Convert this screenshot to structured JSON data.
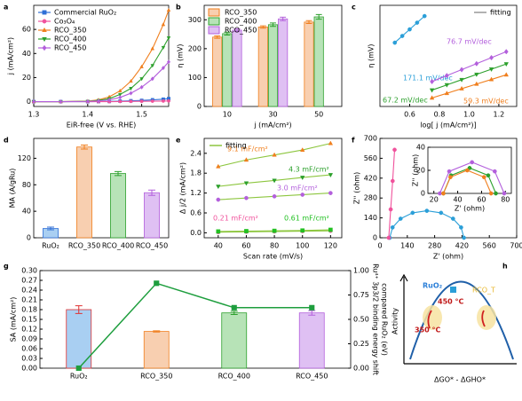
{
  "chart_data": [
    {
      "panel": "a",
      "type": "line",
      "xlabel": "EiR-free (V vs. RHE)",
      "ylabel": "j (mA/cm²)",
      "xlim": [
        1.3,
        1.55
      ],
      "xticks": [
        1.3,
        1.4,
        1.5
      ],
      "ylim": [
        -4,
        80
      ],
      "yticks": [
        0,
        20,
        40,
        60
      ],
      "legend": "upper left",
      "x": [
        1.3,
        1.35,
        1.4,
        1.42,
        1.44,
        1.46,
        1.48,
        1.5,
        1.52,
        1.54,
        1.55
      ],
      "series": [
        {
          "name": "Commercial RuO₂",
          "color": "#2f6fd6",
          "marker": "square",
          "values": [
            0,
            0,
            0,
            0.1,
            0.2,
            0.4,
            0.7,
            1,
            1.5,
            2,
            2.5
          ]
        },
        {
          "name": "Co₃O₄",
          "color": "#f0529c",
          "marker": "circle",
          "values": [
            0,
            0,
            0,
            0,
            0,
            0.1,
            0.2,
            0.3,
            0.4,
            0.5,
            0.6
          ]
        },
        {
          "name": "RCO_350",
          "color": "#f07f1e",
          "marker": "triangle",
          "values": [
            0,
            0,
            0.5,
            1.5,
            4,
            9,
            17,
            29,
            44,
            64,
            76
          ]
        },
        {
          "name": "RCO_400",
          "color": "#2ca02c",
          "marker": "triangle-down",
          "values": [
            0,
            0,
            0.3,
            1,
            2.5,
            6,
            11,
            19,
            30,
            45,
            53
          ]
        },
        {
          "name": "RCO_450",
          "color": "#b35fdc",
          "marker": "diamond",
          "values": [
            0,
            0,
            0.2,
            0.6,
            1.5,
            3.5,
            7,
            12,
            19,
            28,
            33
          ]
        }
      ]
    },
    {
      "panel": "b",
      "type": "bar",
      "xlabel": "j (mA/cm²)",
      "ylabel": "η (mV)",
      "categories": [
        10,
        30,
        50
      ],
      "ylim": [
        0,
        350
      ],
      "yticks": [
        0,
        100,
        200,
        300
      ],
      "legend": "upper left",
      "series": [
        {
          "name": "RCO_350",
          "color": "#f8cfb0",
          "edge": "#f07f1e",
          "values": [
            240,
            275,
            292
          ],
          "errors": [
            4,
            4,
            5
          ]
        },
        {
          "name": "RCO_400",
          "color": "#b7e3b7",
          "edge": "#2ca02c",
          "values": [
            252,
            283,
            310
          ],
          "errors": [
            5,
            6,
            8
          ]
        },
        {
          "name": "RCO_450",
          "color": "#dfc0f3",
          "edge": "#b35fdc",
          "values": [
            264,
            303,
            null
          ],
          "errors": [
            5,
            6,
            null
          ]
        }
      ]
    },
    {
      "panel": "c",
      "type": "scatter",
      "xlabel": "log[ j (mA/cm²)]",
      "ylabel": "η (mV)",
      "xlim": [
        0.4,
        1.32
      ],
      "xticks": [
        0.6,
        0.8,
        {
          "value": 1,
          "label": "1.0"
        },
        1.2
      ],
      "ylim": [
        220,
        350
      ],
      "fit_label": "fitting",
      "fit_color": "#999999",
      "fit_legend": "upper right",
      "series": [
        {
          "color": "#2b9fd8",
          "marker": "circle",
          "x": [
            0.5,
            0.55,
            0.6,
            0.65,
            0.7
          ],
          "values": [
            302,
            310.6,
            319.1,
            327.7,
            336.2
          ],
          "annotation": "171.1 mV/dec"
        },
        {
          "color": "#b35fdc",
          "marker": "diamond",
          "x": [
            0.75,
            0.85,
            0.95,
            1.05,
            1.15,
            1.25
          ],
          "values": [
            252,
            259.7,
            267.3,
            275,
            282.7,
            290.4
          ],
          "annotation": "76.7 mV/dec"
        },
        {
          "color": "#2ca02c",
          "marker": "triangle-down",
          "x": [
            0.75,
            0.85,
            0.95,
            1.05,
            1.15,
            1.25
          ],
          "values": [
            241,
            247.7,
            254.4,
            261.2,
            267.9,
            274.6
          ],
          "annotation": "67.2 mV/dec"
        },
        {
          "color": "#f07f1e",
          "marker": "triangle",
          "x": [
            0.75,
            0.85,
            0.95,
            1.05,
            1.15,
            1.25
          ],
          "values": [
            231,
            236.9,
            242.9,
            248.8,
            254.7,
            260.7
          ],
          "annotation": "59.3 mV/dec"
        }
      ]
    },
    {
      "panel": "d",
      "type": "bar",
      "ylabel": "MA (A/gRu)",
      "categories": [
        "RuO₂",
        "RCO_350",
        "RCO_400",
        "RCO_450"
      ],
      "ylim": [
        0,
        150
      ],
      "yticks": [
        0,
        40,
        80,
        120
      ],
      "series": [
        {
          "colors": [
            "#a9cff2",
            "#f8cfb0",
            "#b7e3b7",
            "#dfc0f3"
          ],
          "edges": [
            "#2f6fd6",
            "#f07f1e",
            "#2ca02c",
            "#b35fdc"
          ],
          "values": [
            14,
            137,
            97,
            68
          ],
          "errors": [
            2,
            3,
            3,
            4
          ]
        }
      ]
    },
    {
      "panel": "e",
      "type": "scatter",
      "xlabel": "Scan rate (mV/s)",
      "ylabel": "Δ j/2 (mA/cm²)",
      "xlim": [
        30,
        128
      ],
      "xticks": [
        40,
        60,
        80,
        100,
        120
      ],
      "ylim": [
        -0.15,
        2.85
      ],
      "yticks": [
        {
          "value": 0,
          "label": "0.0"
        },
        0.6,
        1.2,
        1.8,
        2.4
      ],
      "fit_label": "fitting",
      "fit_color": "#8dc63f",
      "fit_legend": "upper left",
      "series": [
        {
          "color": "#f07f1e",
          "line_color": "#8dc63f",
          "marker": "triangle",
          "x": [
            40,
            60,
            80,
            100,
            120
          ],
          "values": [
            2.0,
            2.2,
            2.35,
            2.5,
            2.7
          ],
          "annotation": "9.1 mF/cm²"
        },
        {
          "color": "#2ca02c",
          "line_color": "#8dc63f",
          "marker": "triangle-down",
          "x": [
            40,
            60,
            80,
            100,
            120
          ],
          "values": [
            1.4,
            1.5,
            1.58,
            1.67,
            1.75
          ],
          "annotation": "4.3 mF/cm²"
        },
        {
          "color": "#b35fdc",
          "line_color": "#8dc63f",
          "marker": "circle",
          "x": [
            40,
            60,
            80,
            100,
            120
          ],
          "values": [
            1.0,
            1.05,
            1.1,
            1.15,
            1.2
          ],
          "annotation": "3.0 mF/cm²"
        },
        {
          "color": "#f0529c",
          "line_color": "#8dc63f",
          "marker": "circle",
          "x": [
            40,
            60,
            80,
            100,
            120
          ],
          "values": [
            0.02,
            0.03,
            0.04,
            0.05,
            0.06
          ],
          "annotation": "0.21 mF/cm²"
        },
        {
          "color": "#22c022",
          "line_color": "#8dc63f",
          "marker": "square",
          "x": [
            40,
            60,
            80,
            100,
            120
          ],
          "values": [
            0.04,
            0.05,
            0.06,
            0.07,
            0.09
          ],
          "annotation": "0.61 mF/cm²"
        }
      ]
    },
    {
      "panel": "f",
      "type": "scatter",
      "xlabel": "Z' (ohm)",
      "ylabel": "Z'' (ohm)",
      "xlim": [
        0,
        700
      ],
      "xticks": [
        0,
        140,
        280,
        420,
        560,
        700
      ],
      "ylim": [
        0,
        700
      ],
      "yticks": [
        0,
        140,
        280,
        420,
        560,
        700
      ],
      "series": [
        {
          "color": "#2b9fd8",
          "marker": "circle",
          "x": [
            50,
            64.5,
            105.7,
            167.2,
            240,
            312.8,
            374.3,
            415.5,
            430
          ],
          "values": [
            0,
            72.8,
            134.3,
            175.6,
            190,
            175.6,
            134.3,
            72.8,
            0
          ]
        },
        {
          "color": "#f0529c",
          "marker": "circle",
          "x": [
            45,
            55,
            65,
            75
          ],
          "values": [
            0,
            200,
            400,
            620
          ]
        }
      ],
      "inset": {
        "type": "scatter",
        "xlabel": "Z' (ohm)",
        "ylabel": "Z'' (ohm)",
        "xlim": [
          15,
          85
        ],
        "xticks": [
          20,
          40,
          60,
          80
        ],
        "ylim": [
          0,
          40
        ],
        "yticks": [
          0,
          20,
          40
        ],
        "series": [
          {
            "color": "#b35fdc",
            "marker": "circle",
            "x": [
              25,
              32.9,
              52,
              71.1,
              79
            ],
            "values": [
              0,
              19.1,
              27,
              19.1,
              0
            ]
          },
          {
            "color": "#2ca02c",
            "marker": "circle",
            "x": [
              28,
              34.4,
              50,
              65.6,
              72
            ],
            "values": [
              0,
              15.6,
              22,
              15.6,
              0
            ]
          },
          {
            "color": "#f07f1e",
            "marker": "circle",
            "x": [
              28,
              33.9,
              48,
              62.1,
              68
            ],
            "values": [
              0,
              14.1,
              20,
              14.1,
              0
            ]
          }
        ]
      }
    },
    {
      "panel": "g",
      "type": "bar",
      "ylabel": "SA (mA/cm²)",
      "y2label": [
        "Ru⁴⁺ 3p3/2 binding energy shift",
        "compared RuO₂ (eV)"
      ],
      "categories": [
        "RuO₂",
        "RCO_350",
        "RCO_400",
        "RCO_450"
      ],
      "ylim": [
        0,
        0.3
      ],
      "yticks": [
        {
          "value": 0,
          "label": "0.00"
        },
        0.03,
        0.06,
        0.09,
        0.12,
        0.15,
        0.18,
        0.21,
        0.24,
        0.27,
        {
          "value": 0.3,
          "label": "0.30"
        }
      ],
      "y2lim": [
        0,
        1
      ],
      "y2ticks": [
        {
          "value": 0,
          "label": "0.00"
        },
        0.25,
        {
          "value": 0.5,
          "label": "0.50"
        },
        0.75,
        {
          "value": 1,
          "label": "1.00"
        }
      ],
      "series": [
        {
          "colors": [
            "#a9cff2",
            "#f8cfb0",
            "#b7e3b7",
            "#dfc0f3"
          ],
          "edges": [
            "#e03030",
            "#f07f1e",
            "#2ca02c",
            "#b35fdc"
          ],
          "values": [
            0.18,
            0.113,
            0.17,
            0.17
          ],
          "errors": [
            0.012,
            0.002,
            0.005,
            0.007
          ]
        },
        {
          "axis": "y2",
          "color": "#1e9e3e",
          "marker": "square",
          "values": [
            0,
            0.87,
            0.62,
            0.62
          ]
        }
      ]
    },
    {
      "panel": "h",
      "type": "diagram",
      "ylabel": "Activity",
      "xlabel": "ΔGO* - ΔGHO*",
      "labels": {
        "ruo2": "RuO₂",
        "rco": "RCO_T",
        "t450": "450 °C",
        "t350": "350 °C"
      }
    }
  ]
}
